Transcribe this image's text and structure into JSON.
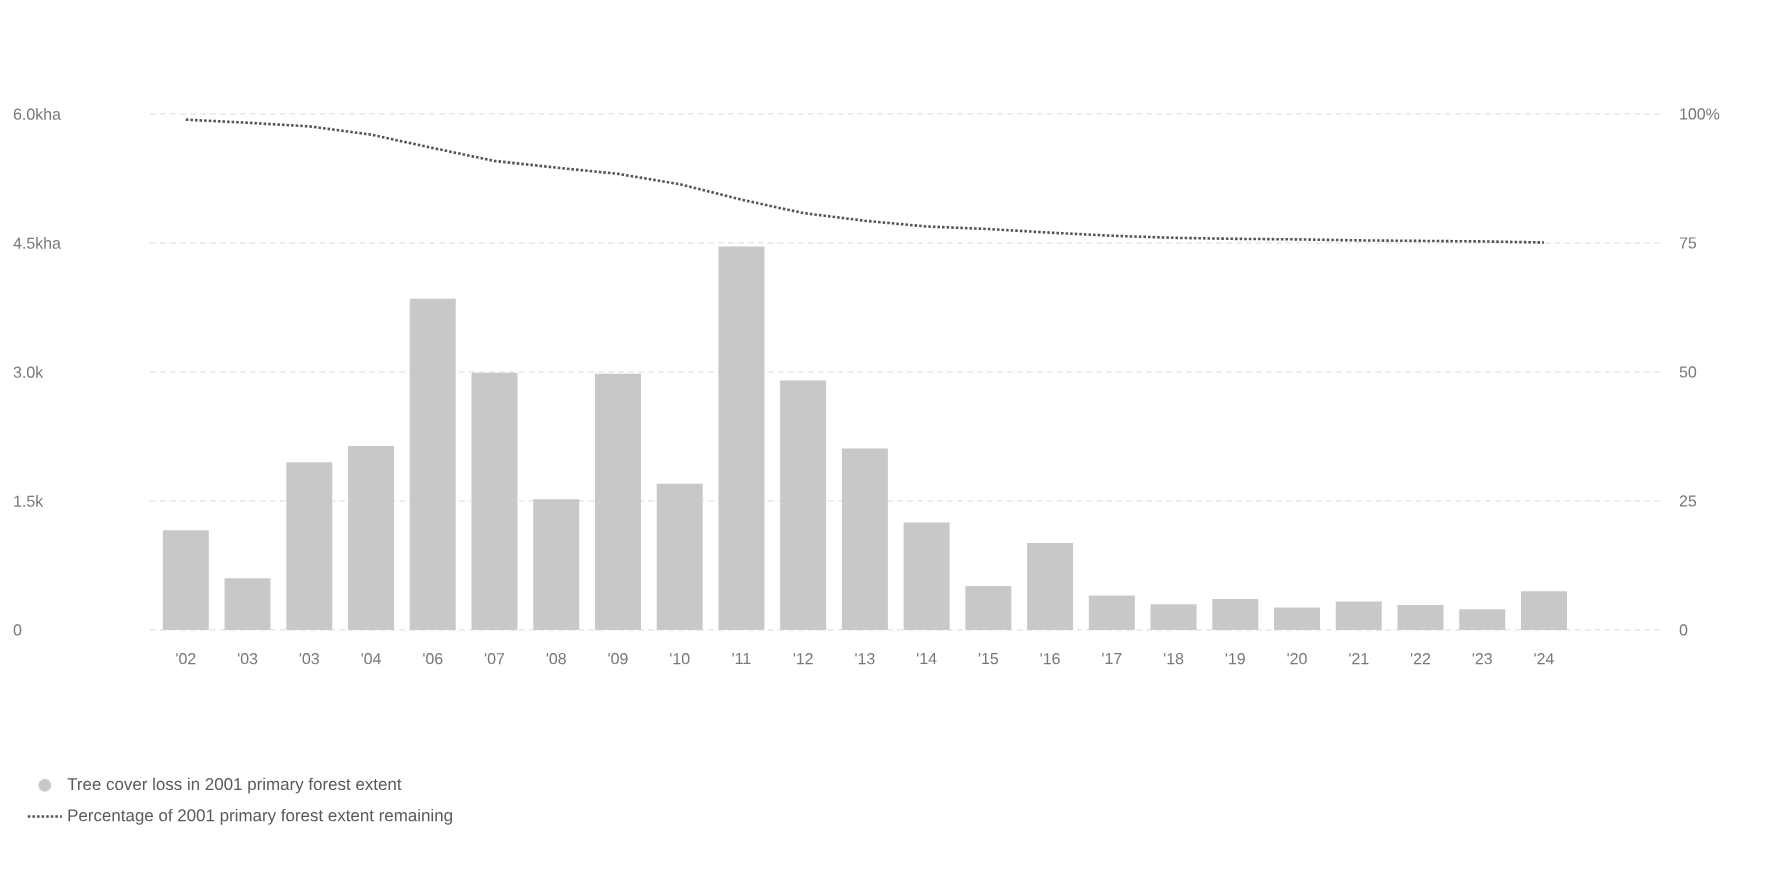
{
  "chart_data": {
    "type": "bar",
    "categories": [
      "'02",
      "'03",
      "'03",
      "'04",
      "'06",
      "'07",
      "'08",
      "'09",
      "'10",
      "'11",
      "'12",
      "'13",
      "'14",
      "'15",
      "'16",
      "'17",
      "'18",
      "'19",
      "'20",
      "'21",
      "'22",
      "'23",
      "'24"
    ],
    "series": [
      {
        "name": "Tree cover loss in 2001 primary forest extent",
        "color": "#c8c8c8",
        "values": [
          1.16,
          0.6,
          1.95,
          2.14,
          3.85,
          2.99,
          1.52,
          2.98,
          1.7,
          4.46,
          2.9,
          2.11,
          1.25,
          0.51,
          1.01,
          0.4,
          0.3,
          0.36,
          0.26,
          0.33,
          0.29,
          0.24,
          0.45
        ]
      },
      {
        "name": "Percentage of 2001 primary forest extent remaining",
        "type": "line",
        "axis": "y2",
        "color": "#555555",
        "line_style": "dotted",
        "values": [
          98.9,
          98.3,
          97.6,
          96.0,
          93.4,
          90.9,
          89.6,
          88.4,
          86.4,
          83.4,
          80.8,
          79.3,
          78.2,
          77.7,
          77.0,
          76.4,
          76.0,
          75.8,
          75.7,
          75.5,
          75.4,
          75.3,
          75.1
        ]
      }
    ],
    "ylim": [
      0,
      6
    ],
    "yticks": [
      0,
      {
        "value": 1.5,
        "label": "1.5k"
      },
      {
        "value": 3,
        "label": "3.0k"
      },
      {
        "value": 4.5,
        "label": "4.5kha"
      },
      {
        "value": 6,
        "label": "6.0kha"
      }
    ],
    "y2lim": [
      0,
      100
    ],
    "y2ticks": [
      0,
      25,
      50,
      75,
      {
        "value": 100,
        "label": "100%"
      }
    ],
    "grid": "y",
    "legend": "bottom"
  }
}
